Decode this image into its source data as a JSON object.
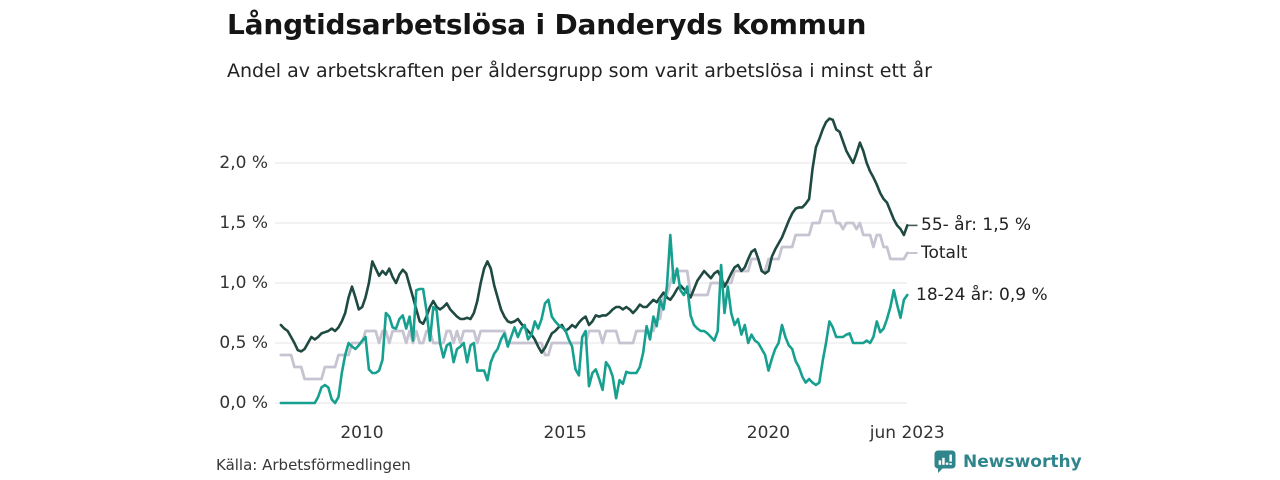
{
  "header": {
    "title": "Långtidsarbetslösa i Danderyds kommun",
    "subtitle": "Andel av arbetskraften per åldersgrupp som varit arbetslösa i minst ett år"
  },
  "footer": {
    "source": "Källa: Arbetsförmedlingen",
    "brand": "Newsworthy"
  },
  "colors": {
    "grid": "#e4e4e4",
    "axis_text": "#333333",
    "brand_teal": "#2e868c",
    "dash_55": "#4a5a56",
    "dash_totalt": "#b9b6c6"
  },
  "chart_data": {
    "type": "line",
    "title": "Långtidsarbetslösa i Danderyds kommun",
    "subtitle": "Andel av arbetskraften per åldersgrupp som varit arbetslösa i minst ett år",
    "x_start": "2008-01",
    "x_end": "2023-06",
    "freq": "monthly",
    "grid": "horizontal",
    "ylim": [
      0,
      2.4
    ],
    "yticks": [
      {
        "value": 0.0,
        "label": "0,0 %"
      },
      {
        "value": 0.5,
        "label": "0,5 %"
      },
      {
        "value": 1.0,
        "label": "1,0 %"
      },
      {
        "value": 1.5,
        "label": "1,5 %"
      },
      {
        "value": 2.0,
        "label": "2,0 %"
      }
    ],
    "xticks": [
      {
        "year": 2010,
        "label": "2010"
      },
      {
        "year": 2015,
        "label": "2015"
      },
      {
        "year": 2020,
        "label": "2020"
      },
      {
        "year": 2023.417,
        "label": "jun 2023"
      }
    ],
    "series": [
      {
        "name": "55- år",
        "end_label": "55- år: 1,5 %",
        "color": "#1f4a42",
        "has_leader_dash": true,
        "values": [
          0.65,
          0.62,
          0.6,
          0.55,
          0.5,
          0.44,
          0.43,
          0.45,
          0.5,
          0.55,
          0.53,
          0.55,
          0.58,
          0.59,
          0.6,
          0.62,
          0.6,
          0.63,
          0.68,
          0.75,
          0.88,
          0.97,
          0.88,
          0.78,
          0.8,
          0.88,
          1.0,
          1.18,
          1.12,
          1.06,
          1.1,
          1.07,
          1.12,
          1.05,
          1.0,
          1.07,
          1.11,
          1.08,
          0.98,
          0.88,
          0.78,
          0.68,
          0.66,
          0.72,
          0.8,
          0.85,
          0.8,
          0.78,
          0.8,
          0.83,
          0.78,
          0.75,
          0.72,
          0.7,
          0.7,
          0.71,
          0.7,
          0.75,
          0.85,
          1.0,
          1.12,
          1.18,
          1.12,
          0.98,
          0.88,
          0.78,
          0.72,
          0.68,
          0.67,
          0.68,
          0.7,
          0.66,
          0.63,
          0.6,
          0.57,
          0.53,
          0.47,
          0.42,
          0.46,
          0.52,
          0.58,
          0.6,
          0.63,
          0.65,
          0.6,
          0.62,
          0.65,
          0.63,
          0.67,
          0.7,
          0.72,
          0.65,
          0.68,
          0.73,
          0.72,
          0.73,
          0.73,
          0.75,
          0.78,
          0.8,
          0.8,
          0.78,
          0.8,
          0.78,
          0.75,
          0.78,
          0.82,
          0.8,
          0.8,
          0.83,
          0.86,
          0.84,
          0.88,
          0.92,
          0.88,
          0.86,
          0.9,
          0.95,
          0.98,
          0.95,
          0.92,
          0.88,
          0.95,
          1.02,
          1.06,
          1.1,
          1.07,
          1.04,
          1.08,
          1.1,
          1.05,
          0.97,
          1.02,
          1.08,
          1.13,
          1.15,
          1.1,
          1.13,
          1.2,
          1.26,
          1.28,
          1.2,
          1.1,
          1.08,
          1.1,
          1.22,
          1.28,
          1.33,
          1.38,
          1.45,
          1.52,
          1.58,
          1.62,
          1.63,
          1.63,
          1.66,
          1.7,
          1.95,
          2.13,
          2.2,
          2.28,
          2.34,
          2.37,
          2.36,
          2.28,
          2.26,
          2.18,
          2.1,
          2.05,
          2.0,
          2.08,
          2.17,
          2.1,
          2.0,
          1.93,
          1.88,
          1.82,
          1.75,
          1.7,
          1.67,
          1.6,
          1.53,
          1.48,
          1.45,
          1.4,
          1.48
        ]
      },
      {
        "name": "Totalt",
        "end_label": "Totalt",
        "color": "#c7c4d2",
        "has_leader_dash": true,
        "values": [
          0.4,
          0.4,
          0.4,
          0.4,
          0.3,
          0.3,
          0.3,
          0.2,
          0.2,
          0.2,
          0.2,
          0.2,
          0.2,
          0.3,
          0.3,
          0.3,
          0.3,
          0.4,
          0.4,
          0.4,
          0.4,
          0.5,
          0.5,
          0.5,
          0.5,
          0.6,
          0.6,
          0.6,
          0.6,
          0.5,
          0.6,
          0.6,
          0.5,
          0.6,
          0.6,
          0.6,
          0.6,
          0.5,
          0.6,
          0.5,
          0.6,
          0.5,
          0.5,
          0.6,
          0.6,
          0.5,
          0.5,
          0.5,
          0.5,
          0.6,
          0.6,
          0.5,
          0.6,
          0.5,
          0.6,
          0.6,
          0.6,
          0.6,
          0.5,
          0.6,
          0.6,
          0.6,
          0.6,
          0.6,
          0.6,
          0.6,
          0.6,
          0.5,
          0.5,
          0.5,
          0.5,
          0.5,
          0.5,
          0.5,
          0.5,
          0.5,
          0.5,
          0.5,
          0.4,
          0.4,
          0.5,
          0.5,
          0.5,
          0.5,
          0.5,
          0.5,
          0.5,
          0.5,
          0.5,
          0.5,
          0.5,
          0.6,
          0.6,
          0.6,
          0.6,
          0.5,
          0.6,
          0.6,
          0.6,
          0.6,
          0.5,
          0.5,
          0.5,
          0.5,
          0.5,
          0.6,
          0.6,
          0.6,
          0.6,
          0.6,
          0.6,
          0.7,
          0.7,
          0.9,
          0.9,
          1.0,
          1.1,
          1.1,
          1.1,
          1.1,
          1.1,
          0.9,
          0.9,
          0.9,
          0.9,
          0.9,
          0.9,
          1.0,
          1.0,
          1.0,
          1.0,
          1.0,
          1.0,
          1.0,
          1.1,
          1.1,
          1.1,
          1.1,
          1.1,
          1.2,
          1.2,
          1.2,
          1.1,
          1.1,
          1.2,
          1.2,
          1.2,
          1.2,
          1.3,
          1.3,
          1.3,
          1.3,
          1.4,
          1.4,
          1.4,
          1.4,
          1.4,
          1.5,
          1.5,
          1.5,
          1.6,
          1.6,
          1.6,
          1.6,
          1.5,
          1.5,
          1.45,
          1.5,
          1.5,
          1.5,
          1.45,
          1.5,
          1.4,
          1.4,
          1.4,
          1.3,
          1.4,
          1.4,
          1.3,
          1.3,
          1.2,
          1.2,
          1.2,
          1.2,
          1.2,
          1.25
        ]
      },
      {
        "name": "18-24 år",
        "end_label": "18-24 år: 0,9 %",
        "color": "#17a08f",
        "has_leader_dash": false,
        "values": [
          0.0,
          0.0,
          0.0,
          0.0,
          0.0,
          0.0,
          0.0,
          0.0,
          0.0,
          0.0,
          0.0,
          0.05,
          0.13,
          0.15,
          0.13,
          0.03,
          0.0,
          0.05,
          0.25,
          0.4,
          0.5,
          0.47,
          0.45,
          0.48,
          0.52,
          0.55,
          0.28,
          0.25,
          0.25,
          0.27,
          0.36,
          0.75,
          0.72,
          0.63,
          0.62,
          0.7,
          0.73,
          0.62,
          0.72,
          0.52,
          0.94,
          0.95,
          0.95,
          0.77,
          0.52,
          0.8,
          0.77,
          0.5,
          0.38,
          0.48,
          0.5,
          0.34,
          0.45,
          0.47,
          0.5,
          0.34,
          0.48,
          0.5,
          0.27,
          0.27,
          0.27,
          0.19,
          0.34,
          0.41,
          0.45,
          0.53,
          0.58,
          0.47,
          0.55,
          0.63,
          0.55,
          0.62,
          0.65,
          0.53,
          0.57,
          0.68,
          0.62,
          0.7,
          0.83,
          0.86,
          0.72,
          0.68,
          0.65,
          0.63,
          0.61,
          0.53,
          0.47,
          0.28,
          0.23,
          0.55,
          0.6,
          0.14,
          0.25,
          0.28,
          0.2,
          0.11,
          0.34,
          0.3,
          0.22,
          0.04,
          0.19,
          0.16,
          0.26,
          0.25,
          0.25,
          0.25,
          0.3,
          0.42,
          0.64,
          0.53,
          0.72,
          0.64,
          0.86,
          0.78,
          0.97,
          1.4,
          1.0,
          1.12,
          0.94,
          0.9,
          0.97,
          0.73,
          0.65,
          0.62,
          0.6,
          0.6,
          0.58,
          0.55,
          0.52,
          0.6,
          1.15,
          0.75,
          0.97,
          0.75,
          0.65,
          0.7,
          0.57,
          0.65,
          0.5,
          0.57,
          0.52,
          0.5,
          0.45,
          0.4,
          0.27,
          0.37,
          0.45,
          0.5,
          0.65,
          0.55,
          0.48,
          0.45,
          0.35,
          0.3,
          0.22,
          0.17,
          0.2,
          0.17,
          0.15,
          0.17,
          0.35,
          0.5,
          0.68,
          0.63,
          0.55,
          0.55,
          0.55,
          0.57,
          0.58,
          0.5,
          0.5,
          0.5,
          0.5,
          0.52,
          0.5,
          0.55,
          0.68,
          0.59,
          0.62,
          0.7,
          0.8,
          0.94,
          0.82,
          0.71,
          0.86,
          0.9
        ]
      }
    ]
  }
}
